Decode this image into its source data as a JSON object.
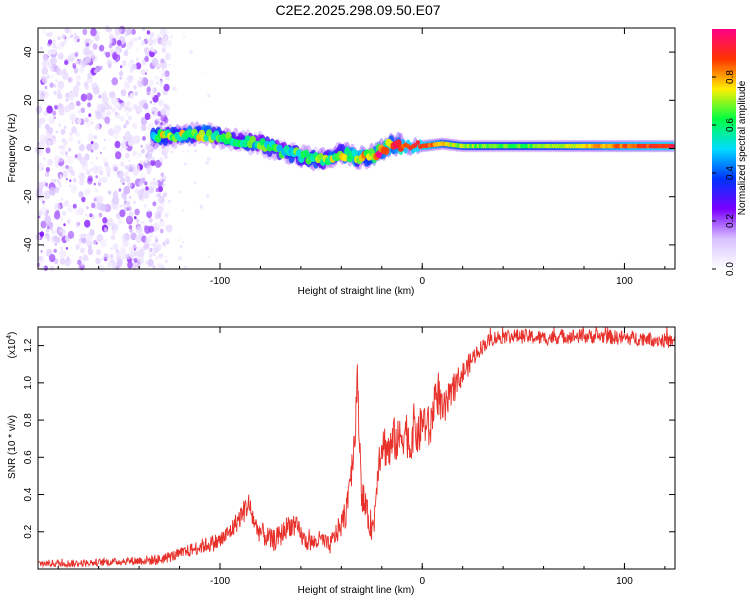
{
  "title": "C2E2.2025.298.09.50.E07",
  "chart_data": [
    {
      "type": "heatmap",
      "name": "spectrogram",
      "xlabel": "Height of straight line (km)",
      "ylabel": "Frequency (Hz)",
      "xlim": [
        -190,
        125
      ],
      "ylim": [
        -50,
        50
      ],
      "x_ticks": [
        -100,
        0,
        100
      ],
      "y_ticks": [
        -40,
        -20,
        0,
        20,
        40
      ],
      "tick_labels_x": [
        "-100",
        "0",
        "100"
      ],
      "tick_labels_y": [
        "-40",
        "-20",
        "0",
        "20",
        "40"
      ],
      "colorbar": {
        "label": "Normalized spectral amplitude",
        "range": [
          0,
          1
        ],
        "ticks": [
          "0.0",
          "0.2",
          "0.4",
          "0.6",
          "0.8"
        ],
        "colors": [
          "#ffffff",
          "#d9c2ff",
          "#7a00ff",
          "#0033ff",
          "#00ddff",
          "#00ff44",
          "#ffee00",
          "#ff3300",
          "#ff0088"
        ]
      },
      "noise_region_km": [
        -190,
        -135
      ],
      "signal_track": {
        "x": [
          -133,
          -120,
          -110,
          -100,
          -90,
          -80,
          -70,
          -60,
          -50,
          -40,
          -30,
          -22,
          -15,
          -10,
          0,
          10,
          20,
          40,
          60,
          80,
          100,
          125
        ],
        "freq_hz": [
          5,
          5,
          6,
          5,
          3,
          2,
          -1,
          -3,
          -5,
          -2,
          -4,
          -2,
          2,
          1,
          1,
          2,
          1,
          1,
          1,
          1,
          1,
          1
        ],
        "amplitude": [
          0.55,
          0.6,
          0.6,
          0.55,
          0.5,
          0.5,
          0.5,
          0.55,
          0.55,
          0.6,
          0.65,
          0.9,
          0.75,
          0.8,
          0.85,
          0.7,
          0.65,
          0.6,
          0.62,
          0.7,
          0.8,
          0.85
        ]
      }
    },
    {
      "type": "line",
      "name": "snr",
      "xlabel": "Height of straight line (km)",
      "ylabel": "SNR (10 * v/v)",
      "y_multiplier": "(x10",
      "y_multiplier_exp": "4",
      "y_multiplier_close": ")",
      "xlim": [
        -190,
        125
      ],
      "ylim": [
        0,
        1.3
      ],
      "x_ticks": [
        -100,
        0,
        100
      ],
      "y_ticks": [
        0.2,
        0.4,
        0.6,
        0.8,
        1.0,
        1.2
      ],
      "tick_labels_x": [
        "-100",
        "0",
        "100"
      ],
      "tick_labels_y": [
        "0.2",
        "0.4",
        "0.6",
        "0.8",
        "1.0",
        "1.2"
      ],
      "color": "#e8302a",
      "x": [
        -190,
        -170,
        -150,
        -130,
        -120,
        -110,
        -100,
        -95,
        -90,
        -86,
        -82,
        -78,
        -74,
        -70,
        -66,
        -62,
        -58,
        -54,
        -50,
        -46,
        -42,
        -38,
        -36,
        -34,
        -32,
        -30,
        -28,
        -26,
        -24,
        -22,
        -20,
        -18,
        -16,
        -14,
        -12,
        -10,
        -8,
        -6,
        -4,
        -2,
        0,
        2,
        4,
        6,
        8,
        10,
        12,
        15,
        18,
        22,
        26,
        30,
        35,
        40,
        50,
        60,
        70,
        80,
        90,
        100,
        110,
        125
      ],
      "y": [
        0.03,
        0.03,
        0.04,
        0.05,
        0.08,
        0.12,
        0.15,
        0.2,
        0.28,
        0.35,
        0.22,
        0.18,
        0.15,
        0.18,
        0.24,
        0.22,
        0.15,
        0.14,
        0.16,
        0.12,
        0.2,
        0.28,
        0.48,
        0.62,
        1.0,
        0.42,
        0.32,
        0.25,
        0.22,
        0.55,
        0.68,
        0.66,
        0.63,
        0.7,
        0.68,
        0.72,
        0.75,
        0.65,
        0.78,
        0.7,
        0.8,
        0.78,
        0.74,
        0.92,
        0.95,
        0.83,
        0.88,
        0.95,
        1.02,
        1.08,
        1.15,
        1.2,
        1.24,
        1.25,
        1.25,
        1.24,
        1.25,
        1.25,
        1.25,
        1.24,
        1.24,
        1.22
      ],
      "noise_amp": [
        0.02,
        0.02,
        0.02,
        0.03,
        0.03,
        0.04,
        0.05,
        0.05,
        0.06,
        0.07,
        0.06,
        0.06,
        0.06,
        0.06,
        0.06,
        0.06,
        0.05,
        0.05,
        0.05,
        0.05,
        0.06,
        0.08,
        0.1,
        0.12,
        0.12,
        0.1,
        0.08,
        0.08,
        0.08,
        0.1,
        0.12,
        0.12,
        0.12,
        0.12,
        0.12,
        0.12,
        0.12,
        0.12,
        0.12,
        0.12,
        0.12,
        0.12,
        0.12,
        0.12,
        0.12,
        0.1,
        0.1,
        0.08,
        0.07,
        0.06,
        0.05,
        0.04,
        0.04,
        0.04,
        0.04,
        0.04,
        0.04,
        0.04,
        0.04,
        0.04,
        0.04,
        0.04
      ]
    }
  ]
}
